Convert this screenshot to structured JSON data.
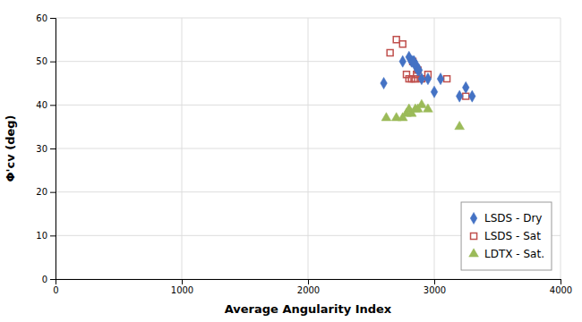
{
  "chart_data": {
    "type": "scatter",
    "xlabel": "Average Angularity Index",
    "ylabel": "Φ'cv (deg)",
    "series": [
      {
        "name": "LSDS - Dry",
        "color": "#4472C4",
        "marker": "diamond",
        "x": [
          2600,
          2750,
          2800,
          2820,
          2830,
          2840,
          2850,
          2860,
          2870,
          2880,
          2900,
          2950,
          3000,
          3050,
          3200,
          3250,
          3300
        ],
        "values": [
          45,
          50,
          51,
          50,
          50,
          50,
          49,
          49,
          48,
          48,
          46,
          46,
          43,
          46,
          42,
          44,
          42
        ]
      },
      {
        "name": "LSDS - Sat",
        "color": "#C0504D",
        "marker": "square-open",
        "x": [
          2650,
          2700,
          2750,
          2780,
          2800,
          2820,
          2830,
          2840,
          2850,
          2860,
          2870,
          2900,
          2950,
          3100,
          3250
        ],
        "values": [
          52,
          55,
          54,
          47,
          46,
          46,
          50,
          46,
          46,
          47,
          48,
          46,
          47,
          46,
          42
        ]
      },
      {
        "name": "LDTX - Sat.",
        "color": "#9BBB59",
        "marker": "triangle",
        "x": [
          2620,
          2700,
          2750,
          2780,
          2800,
          2820,
          2850,
          2870,
          2900,
          2950,
          3200
        ],
        "values": [
          37,
          37,
          37,
          38,
          39,
          38,
          39,
          39,
          40,
          39,
          35
        ]
      }
    ],
    "xlim": [
      0,
      4000
    ],
    "ylim": [
      0,
      60
    ],
    "xticks": [
      0,
      1000,
      2000,
      3000,
      4000
    ],
    "yticks": [
      0,
      10,
      20,
      30,
      40,
      50,
      60
    ],
    "grid": true,
    "legend": "lower right"
  }
}
